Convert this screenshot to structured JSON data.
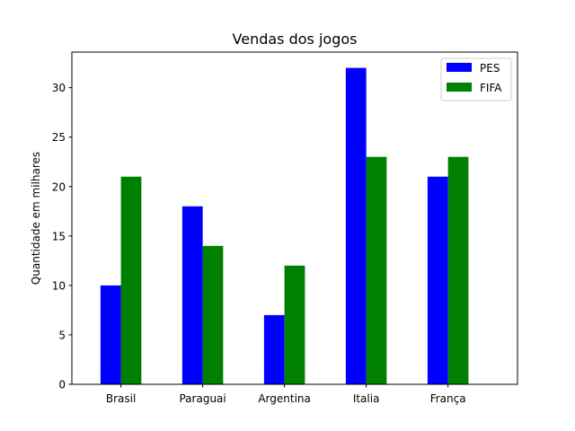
{
  "chart_data": {
    "type": "bar",
    "title": "Vendas dos jogos",
    "xlabel": "",
    "ylabel": "Quantidade em milhares",
    "categories": [
      "Brasil",
      "Paraguai",
      "Argentina",
      "Italia",
      "França"
    ],
    "series": [
      {
        "name": "PES",
        "color": "#0000ff",
        "values": [
          10,
          18,
          7,
          32,
          21
        ]
      },
      {
        "name": "FIFA",
        "color": "#008000",
        "values": [
          21,
          14,
          12,
          23,
          23
        ]
      }
    ],
    "ylim": [
      0,
      33.6
    ],
    "yticks": [
      0,
      5,
      10,
      15,
      20,
      25,
      30
    ],
    "legend": "top-right",
    "grid": false
  }
}
